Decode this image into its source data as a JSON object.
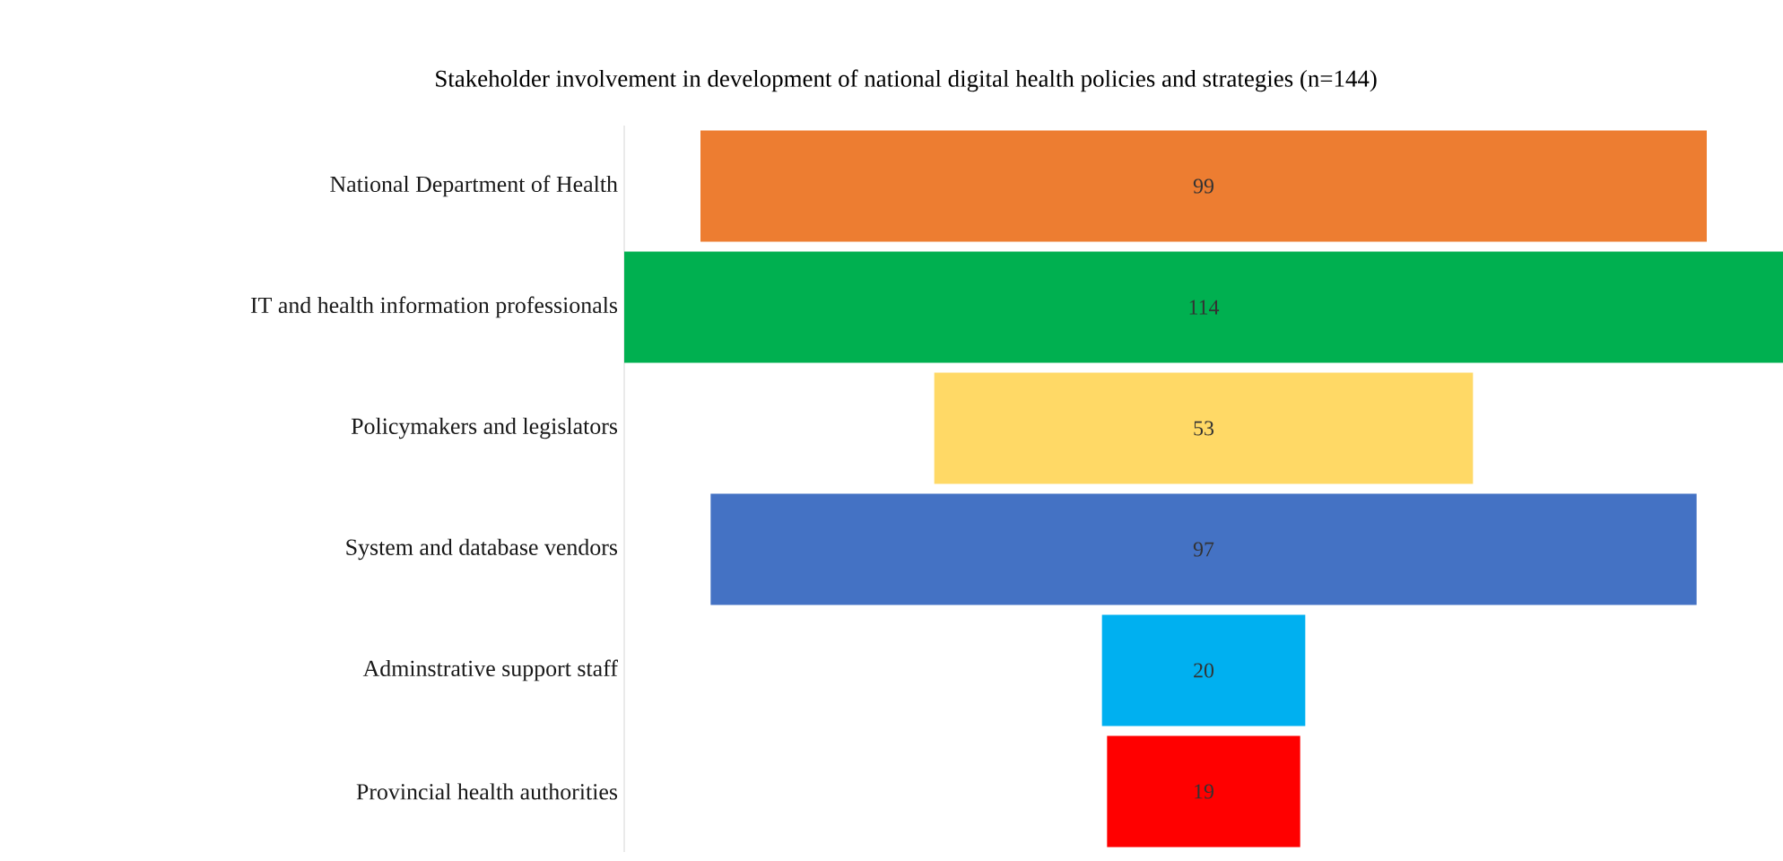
{
  "chart_data": {
    "type": "other",
    "title": "Stakeholder involvement in development of national digital health policies and strategies (n=144)",
    "categories": [
      "National Department of Health",
      "IT and health information professionals",
      "Policymakers and legislators",
      "System and database vendors",
      "Adminstrative support staff",
      "Provincial health authorities"
    ],
    "values": [
      99,
      114,
      53,
      97,
      20,
      19
    ],
    "colors": [
      "#ed7d31",
      "#00b050",
      "#ffd966",
      "#4472c4",
      "#00b0f0",
      "#ff0000"
    ],
    "data_labels": true
  }
}
